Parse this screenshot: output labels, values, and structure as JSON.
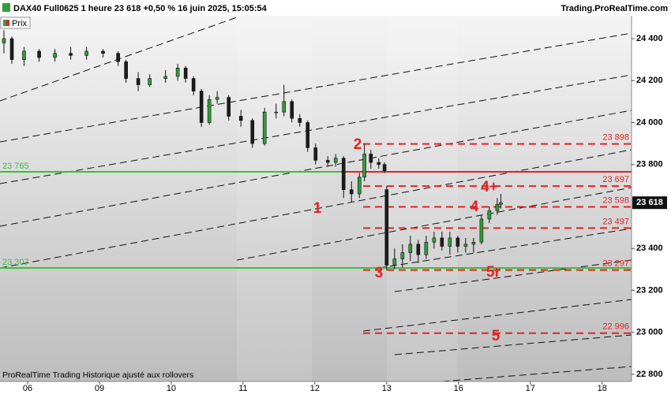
{
  "header": {
    "title": "DAX40 Full0625 1 heure 23 618 +0,50 % 16 juin 2025, 15:05:54",
    "site": "Trading.ProRealTime.com"
  },
  "footer": "ProRealTime Trading  Historique ajusté aux rollovers",
  "chart_data": {
    "type": "ohlc",
    "series": [
      {
        "name": "Prix",
        "color_up": "#2f9e3a",
        "color_down": "#1c1c1c",
        "x": [
          -0.33,
          -0.22,
          -0.05,
          0.16,
          0.38,
          0.6,
          0.82,
          1.05,
          1.26,
          1.37,
          1.54,
          1.7,
          1.92,
          2.09,
          2.2,
          2.31,
          2.42,
          2.53,
          2.64,
          2.8,
          2.97,
          3.13,
          3.3,
          3.46,
          3.57,
          3.68,
          3.79,
          3.9,
          4.01,
          4.18,
          4.29,
          4.4,
          4.51,
          4.62,
          4.69,
          4.78,
          4.89,
          4.97,
          5.0,
          5.11,
          5.22,
          5.33,
          5.44,
          5.55,
          5.66,
          5.77,
          5.88,
          5.99,
          6.1,
          6.21,
          6.32,
          6.43,
          6.54,
          6.59
        ],
        "open": [
          24380,
          24400,
          24300,
          24340,
          24310,
          24330,
          24320,
          24340,
          24330,
          24290,
          24210,
          24180,
          24210,
          24220,
          24260,
          24210,
          24150,
          24000,
          24110,
          24120,
          24030,
          24010,
          23900,
          24050,
          24050,
          24100,
          24020,
          24000,
          23880,
          23820,
          23810,
          23830,
          23680,
          23660,
          23740,
          23850,
          23810,
          23800,
          23680,
          23320,
          23350,
          23380,
          23420,
          23370,
          23430,
          23450,
          23410,
          23450,
          23410,
          23420,
          23430,
          23540,
          23580,
          23610
        ],
        "high": [
          24440,
          24410,
          24360,
          24350,
          24350,
          24360,
          24360,
          24350,
          24340,
          24300,
          24240,
          24230,
          24250,
          24280,
          24270,
          24220,
          24160,
          24130,
          24150,
          24130,
          24060,
          24020,
          24070,
          24090,
          24180,
          24110,
          24040,
          24010,
          23900,
          23840,
          23850,
          23840,
          23720,
          23760,
          23898,
          23870,
          23830,
          23810,
          23697,
          23400,
          23420,
          23460,
          23440,
          23460,
          23480,
          23480,
          23480,
          23460,
          23450,
          23450,
          23560,
          23600,
          23640,
          23660
        ],
        "low": [
          24330,
          24280,
          24270,
          24290,
          24290,
          24300,
          24300,
          24310,
          24270,
          24190,
          24150,
          24170,
          24190,
          24200,
          24190,
          24130,
          23980,
          23990,
          24090,
          24010,
          23980,
          23880,
          23890,
          24020,
          24030,
          24000,
          23980,
          23860,
          23800,
          23790,
          23790,
          23640,
          23620,
          23640,
          23720,
          23780,
          23780,
          23760,
          23297,
          23300,
          23310,
          23340,
          23330,
          23350,
          23400,
          23390,
          23370,
          23380,
          23380,
          23380,
          23420,
          23520,
          23560,
          23590
        ],
        "close": [
          24400,
          24300,
          24340,
          24310,
          24330,
          24320,
          24340,
          24330,
          24290,
          24210,
          24180,
          24210,
          24220,
          24260,
          24210,
          24150,
          24000,
          24110,
          24120,
          24030,
          24010,
          23900,
          24050,
          24050,
          24100,
          24020,
          24000,
          23880,
          23820,
          23810,
          23830,
          23680,
          23660,
          23740,
          23850,
          23810,
          23800,
          23770,
          23320,
          23350,
          23380,
          23420,
          23370,
          23430,
          23450,
          23410,
          23450,
          23410,
          23420,
          23430,
          23540,
          23580,
          23610,
          23618
        ]
      }
    ],
    "xlim": [
      -0.385,
      8.41
    ],
    "xticks": [
      {
        "value": 0,
        "label": "06"
      },
      {
        "value": 1,
        "label": "09"
      },
      {
        "value": 2,
        "label": "10"
      },
      {
        "value": 3,
        "label": "11"
      },
      {
        "value": 4,
        "label": "12"
      },
      {
        "value": 5,
        "label": "13"
      },
      {
        "value": 6,
        "label": "16"
      },
      {
        "value": 7,
        "label": "17"
      },
      {
        "value": 8,
        "label": "18"
      }
    ],
    "ylim": [
      22766,
      24509
    ],
    "yticks": [
      {
        "value": 24400,
        "label": "24 400"
      },
      {
        "value": 24200,
        "label": "24 200"
      },
      {
        "value": 24000,
        "label": "24 000"
      },
      {
        "value": 23800,
        "label": "23 800"
      },
      {
        "value": 23600,
        "label": "23 600"
      },
      {
        "value": 23400,
        "label": "23 400"
      },
      {
        "value": 23200,
        "label": "23 200"
      },
      {
        "value": 23000,
        "label": "23 000"
      },
      {
        "value": 22800,
        "label": "22 800"
      }
    ],
    "last_price": {
      "value": 23618,
      "label": "23 618"
    },
    "support_lines": {
      "color": "#3cbf3c",
      "levels": [
        {
          "value": 23765,
          "label": "23 765"
        },
        {
          "value": 23307,
          "label": "23 307"
        }
      ]
    },
    "target_lines": {
      "color": "#e02424",
      "levels": [
        {
          "value": 23898,
          "label": "23 898"
        },
        {
          "value": 23697,
          "label": "23 697"
        },
        {
          "value": 23598,
          "label": "23 598"
        },
        {
          "value": 23497,
          "label": "23 497"
        },
        {
          "value": 23297,
          "label": "23 297"
        },
        {
          "value": 22996,
          "label": "22 996"
        }
      ]
    },
    "annotations": [
      "1",
      "2",
      "3",
      "4+",
      "4",
      "5r",
      "5"
    ]
  }
}
